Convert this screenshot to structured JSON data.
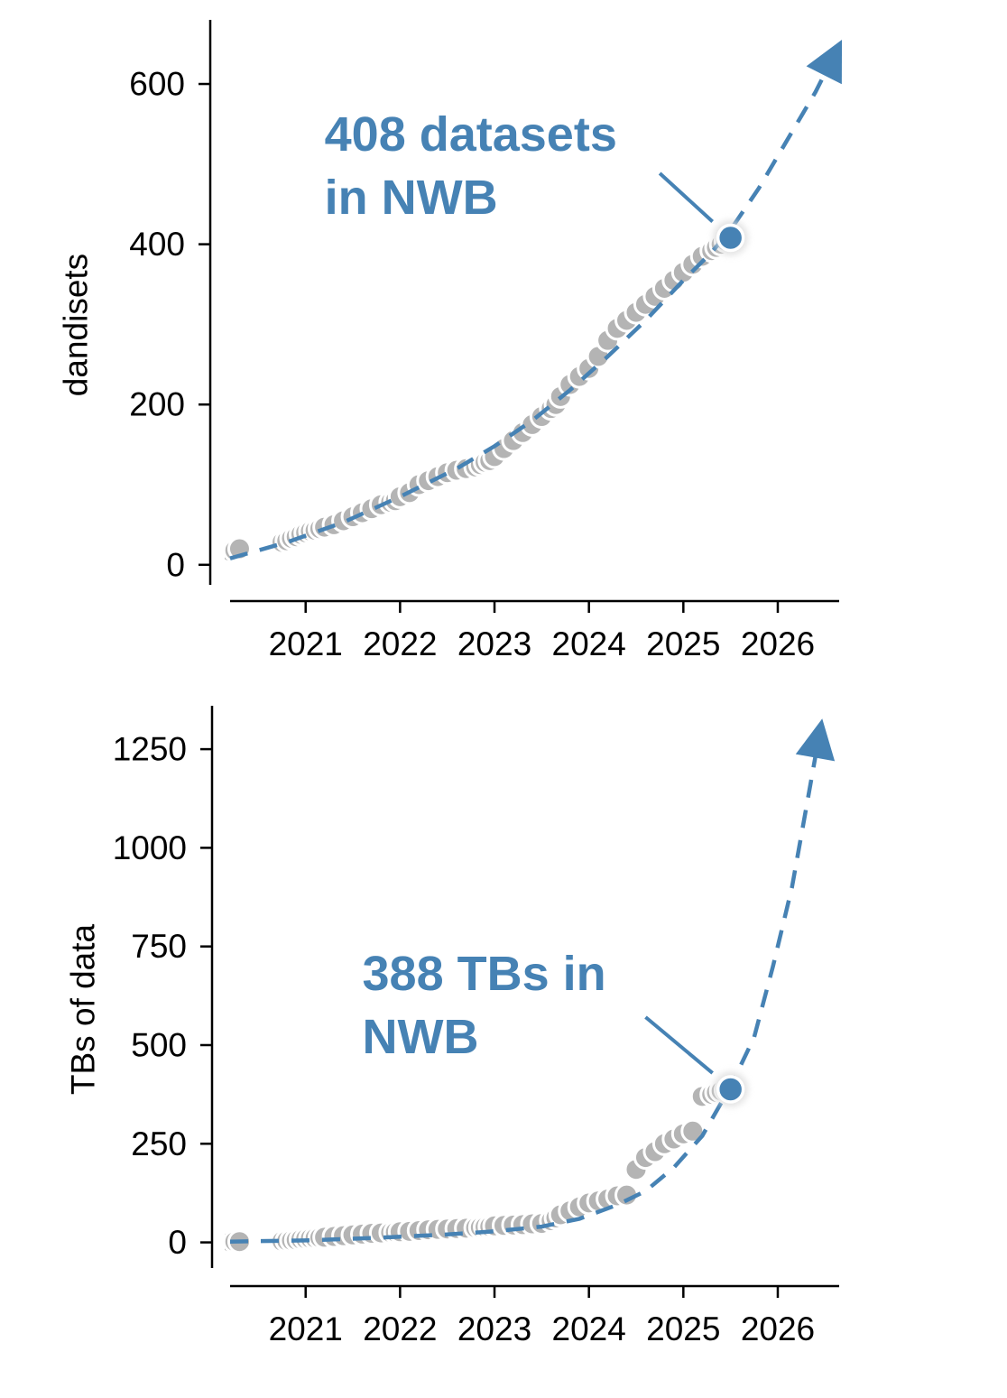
{
  "colors": {
    "accent": "#4682b4",
    "history_marker": "#b4b4b4",
    "marker_edge": "#ffffff",
    "axis": "#000000"
  },
  "chart_data": [
    {
      "type": "scatter",
      "ylabel": "dandisets",
      "xlabel": "",
      "x_ticks": [
        "2021",
        "2022",
        "2023",
        "2024",
        "2025",
        "2026"
      ],
      "y_ticks": [
        "0",
        "200",
        "400",
        "600"
      ],
      "xlim": [
        2020.2,
        2026.65
      ],
      "ylim": [
        -25,
        680
      ],
      "annotation": {
        "lines": [
          "408 datasets",
          "in NWB"
        ],
        "text_x": 2021.2,
        "y": 408,
        "line_from_x": 2024.75
      },
      "history": {
        "x": [
          2020.1,
          2020.2,
          2020.25,
          2020.3,
          2020.75,
          2020.8,
          2020.85,
          2020.9,
          2020.95,
          2021.0,
          2021.05,
          2021.1,
          2021.15,
          2021.2,
          2021.3,
          2021.4,
          2021.5,
          2021.6,
          2021.7,
          2021.8,
          2021.9,
          2021.95,
          2022.0,
          2022.1,
          2022.2,
          2022.3,
          2022.4,
          2022.5,
          2022.6,
          2022.7,
          2022.8,
          2022.85,
          2022.9,
          2022.95,
          2023.0,
          2023.1,
          2023.2,
          2023.3,
          2023.4,
          2023.5,
          2023.6,
          2023.65,
          2023.7,
          2023.8,
          2023.9,
          2024.0,
          2024.1,
          2024.2,
          2024.3,
          2024.4,
          2024.5,
          2024.6,
          2024.7,
          2024.8,
          2024.9,
          2025.0,
          2025.1,
          2025.2,
          2025.3,
          2025.35,
          2025.4,
          2025.45
        ],
        "y": [
          15,
          17,
          18,
          20,
          28,
          30,
          33,
          35,
          38,
          40,
          42,
          43,
          45,
          47,
          50,
          55,
          60,
          65,
          70,
          75,
          78,
          80,
          85,
          90,
          100,
          105,
          110,
          115,
          118,
          120,
          122,
          125,
          128,
          130,
          135,
          145,
          155,
          165,
          175,
          185,
          195,
          200,
          210,
          225,
          235,
          245,
          260,
          280,
          295,
          305,
          315,
          325,
          335,
          345,
          355,
          365,
          375,
          385,
          392,
          396,
          400,
          404
        ]
      },
      "current": {
        "x": 2025.5,
        "y": 408
      },
      "trend": {
        "x": [
          2020.2,
          2020.8,
          2021.4,
          2022.0,
          2022.6,
          2023.0,
          2023.4,
          2023.8,
          2024.2,
          2024.6,
          2025.0,
          2025.3,
          2025.5,
          2025.8,
          2026.1,
          2026.4,
          2026.55
        ],
        "y": [
          8,
          28,
          53,
          85,
          120,
          148,
          180,
          218,
          260,
          305,
          355,
          390,
          418,
          470,
          530,
          590,
          625
        ]
      }
    },
    {
      "type": "scatter",
      "ylabel": "TBs of data",
      "xlabel": "",
      "x_ticks": [
        "2021",
        "2022",
        "2023",
        "2024",
        "2025",
        "2026"
      ],
      "y_ticks": [
        "0",
        "250",
        "500",
        "750",
        "1000",
        "1250"
      ],
      "xlim": [
        2020.2,
        2026.65
      ],
      "ylim": [
        -65,
        1360
      ],
      "annotation": {
        "lines": [
          "388 TBs in",
          "NWB"
        ],
        "text_x": 2021.6,
        "y": 388,
        "line_from_x": 2024.6
      },
      "history": {
        "x": [
          2020.1,
          2020.2,
          2020.25,
          2020.3,
          2020.75,
          2020.8,
          2020.85,
          2020.9,
          2020.95,
          2021.0,
          2021.05,
          2021.1,
          2021.15,
          2021.2,
          2021.3,
          2021.4,
          2021.5,
          2021.6,
          2021.7,
          2021.8,
          2021.9,
          2021.95,
          2022.0,
          2022.1,
          2022.2,
          2022.3,
          2022.4,
          2022.5,
          2022.6,
          2022.7,
          2022.8,
          2022.85,
          2022.9,
          2022.95,
          2023.0,
          2023.1,
          2023.2,
          2023.3,
          2023.4,
          2023.5,
          2023.6,
          2023.65,
          2023.7,
          2023.8,
          2023.9,
          2024.0,
          2024.1,
          2024.2,
          2024.3,
          2024.4,
          2024.5,
          2024.6,
          2024.7,
          2024.8,
          2024.9,
          2025.0,
          2025.1,
          2025.2,
          2025.3,
          2025.35,
          2025.4,
          2025.45
        ],
        "y": [
          1,
          1,
          2,
          2,
          3,
          4,
          5,
          6,
          8,
          9,
          10,
          11,
          12,
          13,
          15,
          17,
          19,
          21,
          23,
          24,
          25,
          26,
          27,
          28,
          30,
          32,
          33,
          34,
          35,
          36,
          37,
          38,
          39,
          40,
          42,
          43,
          44,
          45,
          47,
          48,
          55,
          62,
          70,
          80,
          90,
          100,
          105,
          110,
          118,
          120,
          185,
          215,
          230,
          250,
          262,
          275,
          282,
          370,
          375,
          380,
          384,
          386
        ]
      },
      "current": {
        "x": 2025.5,
        "y": 388
      },
      "trend": {
        "x": [
          2020.2,
          2021.0,
          2021.8,
          2022.5,
          2023.0,
          2023.5,
          2023.9,
          2024.3,
          2024.6,
          2024.9,
          2025.2,
          2025.5,
          2025.75,
          2025.95,
          2026.15,
          2026.3,
          2026.42
        ],
        "y": [
          2,
          5,
          12,
          20,
          28,
          40,
          60,
          95,
          130,
          190,
          270,
          395,
          520,
          700,
          900,
          1100,
          1260
        ]
      }
    }
  ]
}
